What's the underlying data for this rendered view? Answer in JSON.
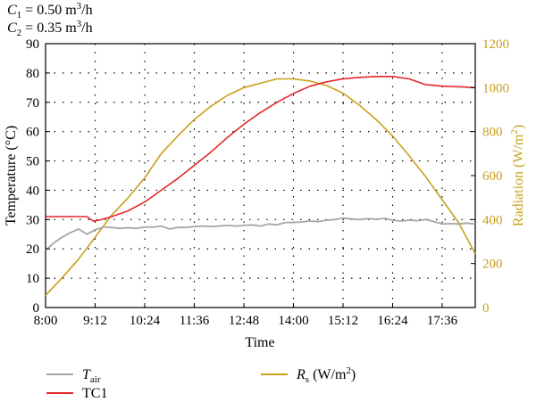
{
  "chart_data": {
    "type": "line",
    "annotations": [
      {
        "var": "C",
        "sub": "1",
        "value": " = 0.50 m",
        "sup": "3",
        "unit_tail": "/h"
      },
      {
        "var": "C",
        "sub": "2",
        "value": " = 0.35 m",
        "sup": "3",
        "unit_tail": "/h"
      }
    ],
    "xlabel": "Time",
    "ylabel_left": "Temperature (°C)",
    "ylabel_right": {
      "text": "Radiation (W/m",
      "sup": "2",
      "tail": ")"
    },
    "x_ticks": [
      "8:00",
      "9:12",
      "10:24",
      "11:36",
      "12:48",
      "14:00",
      "15:12",
      "16:24",
      "17:36"
    ],
    "xlim_hours": [
      8.0,
      18.4
    ],
    "y_left_ticks": [
      "0",
      "10",
      "20",
      "30",
      "40",
      "50",
      "60",
      "70",
      "80",
      "90"
    ],
    "ylim_left": [
      0,
      90
    ],
    "y_right_ticks": [
      "0",
      "200",
      "400",
      "600",
      "800",
      "1000",
      "1200"
    ],
    "ylim_right": [
      0,
      1200
    ],
    "grid": true,
    "legend_position": "bottom",
    "colors": {
      "t_air": "#a6a6a6",
      "tc1": "#e3262b",
      "rs": "#c9a11a"
    },
    "series": [
      {
        "key": "t_air",
        "name": {
          "main": "T",
          "sub": "air",
          "tail": ""
        },
        "axis": "left",
        "x_hours": [
          8.0,
          8.2,
          8.4,
          8.6,
          8.8,
          9.0,
          9.2,
          9.4,
          9.6,
          9.8,
          10.0,
          10.2,
          10.4,
          10.6,
          10.8,
          11.0,
          11.2,
          11.4,
          11.6,
          11.8,
          12.0,
          12.2,
          12.4,
          12.6,
          12.8,
          13.0,
          13.2,
          13.4,
          13.6,
          13.8,
          14.0,
          14.2,
          14.4,
          14.6,
          14.8,
          15.0,
          15.2,
          15.4,
          15.6,
          15.8,
          16.0,
          16.2,
          16.4,
          16.6,
          16.8,
          17.0,
          17.2,
          17.4,
          17.6,
          17.8,
          18.0,
          18.2,
          18.4
        ],
        "values": [
          19.5,
          22.0,
          24.0,
          25.5,
          26.8,
          25.0,
          26.5,
          27.5,
          27.3,
          27.0,
          27.2,
          27.0,
          27.5,
          27.4,
          27.8,
          26.8,
          27.3,
          27.3,
          27.6,
          27.8,
          27.6,
          27.8,
          28.0,
          27.8,
          28.0,
          28.2,
          27.8,
          28.5,
          28.2,
          29.0,
          29.0,
          29.2,
          29.5,
          29.3,
          29.8,
          30.0,
          30.5,
          30.2,
          30.0,
          30.3,
          30.1,
          30.4,
          29.8,
          29.5,
          29.8,
          29.6,
          30.0,
          29.3,
          28.5,
          28.6,
          28.5,
          28.8,
          28.5
        ]
      },
      {
        "key": "tc1",
        "name": {
          "main": "TC1",
          "sub": "",
          "tail": ""
        },
        "axis": "left",
        "x_hours": [
          8.0,
          8.5,
          9.0,
          9.15,
          9.3,
          9.6,
          10.0,
          10.4,
          10.8,
          11.2,
          11.6,
          12.0,
          12.4,
          12.8,
          13.2,
          13.6,
          14.0,
          14.4,
          14.8,
          15.2,
          15.6,
          16.0,
          16.4,
          16.8,
          17.0,
          17.2,
          17.4,
          17.6,
          18.0,
          18.4
        ],
        "values": [
          31.0,
          31.0,
          31.0,
          29.5,
          29.8,
          31.0,
          33.0,
          36.0,
          40.0,
          44.0,
          48.5,
          53.0,
          58.0,
          62.5,
          66.5,
          70.0,
          73.0,
          75.5,
          77.0,
          78.0,
          78.5,
          78.8,
          78.8,
          78.0,
          77.0,
          76.0,
          75.8,
          75.5,
          75.3,
          75.0
        ]
      },
      {
        "key": "rs",
        "name": {
          "main": "R",
          "sub": "s",
          "tail": " (W/m",
          "sup": "2",
          "end": ")"
        },
        "axis": "right",
        "x_hours": [
          8.0,
          8.4,
          8.8,
          9.2,
          9.6,
          10.0,
          10.4,
          10.8,
          11.2,
          11.6,
          12.0,
          12.4,
          12.8,
          13.2,
          13.6,
          14.0,
          14.4,
          14.8,
          15.2,
          15.6,
          16.0,
          16.4,
          16.8,
          17.2,
          17.6,
          18.0,
          18.4
        ],
        "values": [
          55,
          135,
          220,
          320,
          420,
          500,
          590,
          700,
          780,
          855,
          915,
          965,
          1000,
          1020,
          1040,
          1040,
          1030,
          1010,
          975,
          920,
          855,
          780,
          690,
          595,
          490,
          385,
          245
        ]
      }
    ]
  }
}
